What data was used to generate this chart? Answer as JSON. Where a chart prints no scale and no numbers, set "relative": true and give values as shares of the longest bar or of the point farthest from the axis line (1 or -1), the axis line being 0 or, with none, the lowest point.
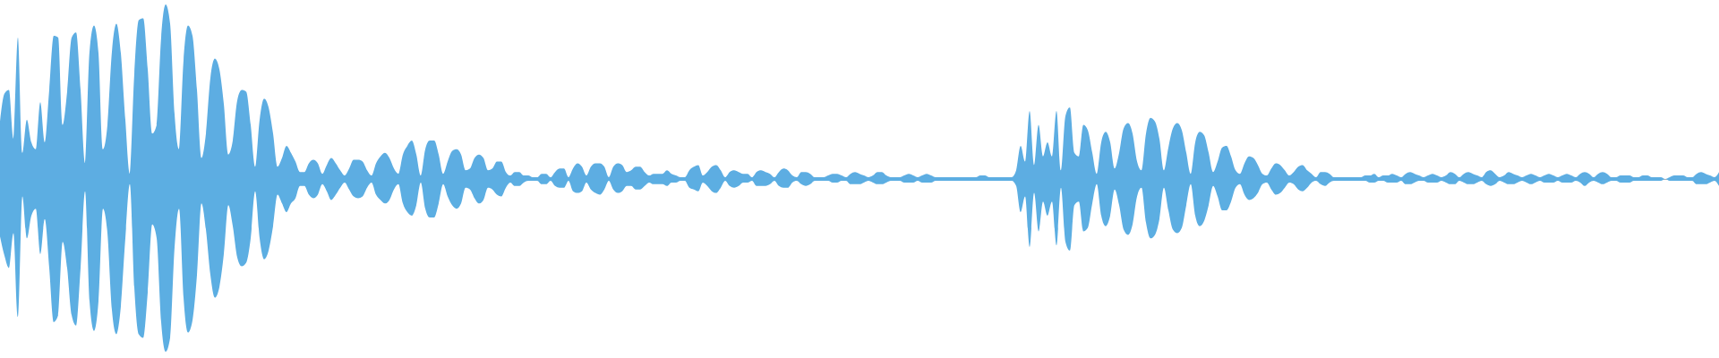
{
  "chart_data": {
    "type": "area",
    "relative": true,
    "tick_labels": false,
    "categories": [
      null,
      null,
      null,
      null,
      null,
      null,
      null,
      null,
      null,
      null,
      null,
      null,
      null,
      null,
      null,
      null,
      null,
      null,
      null,
      null,
      null,
      null,
      null,
      null,
      null,
      null,
      null,
      null,
      null,
      null,
      null,
      null,
      null,
      null,
      null,
      null,
      null,
      null,
      null,
      null,
      null,
      null,
      null,
      null,
      null,
      null,
      null,
      null,
      null,
      null,
      null,
      null,
      null,
      null,
      null,
      null,
      null,
      null,
      null,
      null,
      null,
      null,
      null,
      null,
      null,
      null,
      null,
      null,
      null,
      null,
      null,
      null,
      null,
      null,
      null,
      null,
      null,
      null,
      null,
      null,
      null,
      null,
      null,
      null,
      null,
      null,
      null,
      null,
      null,
      null,
      null,
      null,
      null,
      null,
      null,
      null,
      null,
      null,
      null,
      null,
      null,
      null,
      null,
      null,
      null,
      null,
      null,
      null,
      null,
      null,
      null,
      null,
      null,
      null,
      null,
      null,
      null,
      null,
      null,
      null,
      null,
      null,
      null,
      null,
      null,
      null,
      null,
      null,
      null,
      null,
      null,
      null,
      null,
      null,
      null,
      null,
      null,
      null,
      null,
      null,
      null,
      null,
      null,
      null,
      null,
      null,
      null,
      null,
      null,
      null,
      null,
      null,
      null,
      null,
      null,
      null,
      null,
      null,
      null,
      null,
      null,
      null,
      null,
      null,
      null,
      null,
      null,
      null,
      null,
      null,
      null,
      null,
      null,
      null,
      null,
      null,
      null,
      null,
      null,
      null,
      null,
      null,
      null,
      null,
      null,
      null,
      null,
      null,
      null,
      null,
      null,
      null,
      null,
      null,
      null,
      null,
      null,
      null,
      null,
      null,
      null,
      null,
      null,
      null,
      null,
      null,
      null,
      null,
      null,
      null,
      null,
      null,
      null,
      null,
      null,
      null,
      null,
      null,
      null,
      null,
      null,
      null,
      null,
      null,
      null,
      null,
      null,
      null,
      null,
      null,
      null,
      null,
      null,
      null,
      null,
      null,
      null,
      null,
      null,
      null,
      null,
      null,
      null,
      null,
      null,
      null,
      null,
      null,
      null,
      null,
      null,
      null,
      null,
      null,
      null,
      null,
      null,
      null,
      null,
      null,
      null,
      null,
      null,
      null,
      null,
      null,
      null,
      null,
      null,
      null,
      null,
      null,
      null,
      null,
      null,
      null,
      null,
      null,
      null,
      null,
      null,
      null,
      null,
      null,
      null,
      null,
      null,
      null,
      null,
      null,
      null,
      null,
      null,
      null,
      null,
      null,
      null,
      null,
      null,
      null,
      null,
      null,
      null,
      null,
      null,
      null,
      null,
      null,
      null,
      null,
      null,
      null,
      null,
      null,
      null,
      null,
      null,
      null,
      null,
      null,
      null,
      null,
      null,
      null,
      null,
      null,
      null,
      null,
      null,
      null,
      null,
      null,
      null,
      null,
      null,
      null,
      null,
      null,
      null,
      null,
      null,
      null,
      null,
      null,
      null,
      null,
      null,
      null,
      null,
      null,
      null,
      null,
      null,
      null,
      null,
      null,
      null,
      null,
      null,
      null,
      null,
      null,
      null,
      null,
      null,
      null,
      null,
      null,
      null,
      null,
      null,
      null,
      null,
      null,
      null,
      null,
      null,
      null,
      null,
      null,
      null,
      null,
      null,
      null,
      null
    ],
    "series": [
      {
        "color": "#5dade2",
        "values": [
          0.33,
          0.49,
          0.51,
          0.23,
          0.81,
          0.15,
          0.34,
          0.21,
          0.17,
          0.44,
          0.21,
          0.51,
          0.82,
          0.81,
          0.31,
          0.5,
          0.81,
          0.84,
          0.51,
          0.09,
          0.73,
          0.88,
          0.72,
          0.17,
          0.31,
          0.73,
          0.89,
          0.72,
          0.34,
          0.03,
          0.6,
          0.91,
          0.92,
          0.63,
          0.26,
          0.31,
          0.81,
          1,
          0.89,
          0.37,
          0.17,
          0.68,
          0.88,
          0.82,
          0.51,
          0.12,
          0.26,
          0.58,
          0.69,
          0.63,
          0.43,
          0.14,
          0.22,
          0.45,
          0.51,
          0.5,
          0.31,
          0.07,
          0.34,
          0.46,
          0.41,
          0.26,
          0.07,
          0.12,
          0.19,
          0.15,
          0.1,
          0.04,
          0.04,
          0.09,
          0.11,
          0.09,
          0.03,
          0.08,
          0.12,
          0.09,
          0.05,
          0.02,
          0.06,
          0.11,
          0.11,
          0.1,
          0.05,
          0.02,
          0.09,
          0.13,
          0.15,
          0.12,
          0.06,
          0.03,
          0.14,
          0.19,
          0.22,
          0.14,
          0.02,
          0.17,
          0.22,
          0.22,
          0.14,
          0.03,
          0.1,
          0.16,
          0.17,
          0.14,
          0.05,
          0.06,
          0.12,
          0.14,
          0.12,
          0.05,
          0.06,
          0.1,
          0.1,
          0.04,
          0.02,
          0.04,
          0.04,
          0.02,
          0.02,
          0.01,
          0.01,
          0.03,
          0.03,
          0.01,
          0.04,
          0.06,
          0.06,
          0.01,
          0.06,
          0.09,
          0.07,
          0.02,
          0.07,
          0.09,
          0.09,
          0.07,
          0.01,
          0.07,
          0.09,
          0.08,
          0.04,
          0.05,
          0.07,
          0.07,
          0.04,
          0.02,
          0.03,
          0.03,
          0.03,
          0.05,
          0.03,
          0.02,
          0.01,
          0.01,
          0.05,
          0.07,
          0.08,
          0.02,
          0.04,
          0.07,
          0.08,
          0.05,
          0.01,
          0.04,
          0.05,
          0.04,
          0.03,
          0.03,
          0.01,
          0.04,
          0.05,
          0.04,
          0.03,
          0.01,
          0.04,
          0.06,
          0.05,
          0.02,
          0.01,
          0.04,
          0.04,
          0.03,
          0.01,
          0.01,
          0.01,
          0.02,
          0.03,
          0.03,
          0.02,
          0.01,
          0.03,
          0.04,
          0.03,
          0.02,
          0.01,
          0.02,
          0.04,
          0.04,
          0.02,
          0.01,
          0.01,
          0.01,
          0.02,
          0.03,
          0.02,
          0.01,
          0.02,
          0.03,
          0.02,
          0.01,
          0.01,
          0.01,
          0.01,
          0.01,
          0.01,
          0.01,
          0.01,
          0.01,
          0.01,
          0.02,
          0.02,
          0.01,
          0.01,
          0.01,
          0.01,
          0.01,
          0.01,
          0.05,
          0.19,
          0.1,
          0.39,
          0.08,
          0.31,
          0.13,
          0.21,
          0.13,
          0.39,
          0.05,
          0.36,
          0.41,
          0.15,
          0.13,
          0.31,
          0.28,
          0.15,
          0.03,
          0.21,
          0.27,
          0.21,
          0.06,
          0.15,
          0.29,
          0.32,
          0.26,
          0.1,
          0.05,
          0.26,
          0.35,
          0.33,
          0.23,
          0.05,
          0.18,
          0.29,
          0.32,
          0.28,
          0.15,
          0.03,
          0.21,
          0.27,
          0.25,
          0.15,
          0.04,
          0.1,
          0.18,
          0.19,
          0.13,
          0.05,
          0.03,
          0.09,
          0.13,
          0.12,
          0.08,
          0.03,
          0.02,
          0.06,
          0.09,
          0.08,
          0.05,
          0.02,
          0.04,
          0.07,
          0.08,
          0.05,
          0.03,
          0.01,
          0.04,
          0.04,
          0.03,
          0.01,
          0.01,
          0.01,
          0.01,
          0.01,
          0.01,
          0.01,
          0.02,
          0.02,
          0.03,
          0.01,
          0.02,
          0.02,
          0.03,
          0.02,
          0.01,
          0.03,
          0.04,
          0.03,
          0.02,
          0.01,
          0.02,
          0.03,
          0.02,
          0.01,
          0.02,
          0.04,
          0.03,
          0.01,
          0.03,
          0.04,
          0.03,
          0.02,
          0.01,
          0.04,
          0.05,
          0.03,
          0.01,
          0.02,
          0.04,
          0.03,
          0.02,
          0.01,
          0.02,
          0.03,
          0.02,
          0.01,
          0.02,
          0.03,
          0.02,
          0.01,
          0.02,
          0.03,
          0.02,
          0.01,
          0.03,
          0.04,
          0.03,
          0.01,
          0.03,
          0.04,
          0.03,
          0.01,
          0.01,
          0.02,
          0.02,
          0.02,
          0.01,
          0.01,
          0.02,
          0.02,
          0.01,
          0.01,
          0.01,
          0,
          0.01,
          0.02,
          0.02,
          0.02,
          0.01,
          0.01,
          0.03,
          0.04,
          0.03,
          0.02,
          0.01,
          0.04
        ]
      },
      {
        "color": "#5caee2",
        "values": [
          -0.33,
          -0.44,
          -0.51,
          -0.31,
          -0.79,
          -0.1,
          -0.34,
          -0.21,
          -0.17,
          -0.43,
          -0.23,
          -0.51,
          -0.82,
          -0.78,
          -0.36,
          -0.51,
          -0.78,
          -0.84,
          -0.51,
          -0.07,
          -0.7,
          -0.87,
          -0.7,
          -0.17,
          -0.31,
          -0.75,
          -0.89,
          -0.73,
          -0.34,
          -0.03,
          -0.62,
          -0.89,
          -0.91,
          -0.65,
          -0.26,
          -0.34,
          -0.82,
          -0.99,
          -0.91,
          -0.39,
          -0.17,
          -0.68,
          -0.88,
          -0.81,
          -0.55,
          -0.14,
          -0.29,
          -0.55,
          -0.68,
          -0.62,
          -0.43,
          -0.15,
          -0.27,
          -0.45,
          -0.5,
          -0.48,
          -0.34,
          -0.07,
          -0.34,
          -0.46,
          -0.41,
          -0.27,
          -0.09,
          -0.14,
          -0.19,
          -0.14,
          -0.11,
          -0.04,
          -0.04,
          -0.09,
          -0.11,
          -0.09,
          -0.03,
          -0.07,
          -0.12,
          -0.09,
          -0.05,
          -0.02,
          -0.06,
          -0.1,
          -0.11,
          -0.1,
          -0.05,
          -0.02,
          -0.09,
          -0.12,
          -0.14,
          -0.12,
          -0.06,
          -0.03,
          -0.14,
          -0.19,
          -0.21,
          -0.15,
          -0.02,
          -0.17,
          -0.22,
          -0.22,
          -0.14,
          -0.03,
          -0.1,
          -0.15,
          -0.17,
          -0.14,
          -0.05,
          -0.06,
          -0.11,
          -0.14,
          -0.12,
          -0.05,
          -0.06,
          -0.09,
          -0.1,
          -0.05,
          -0.02,
          -0.04,
          -0.04,
          -0.02,
          -0.01,
          -0.01,
          -0.01,
          -0.03,
          -0.03,
          -0.01,
          -0.04,
          -0.05,
          -0.05,
          -0.01,
          -0.07,
          -0.08,
          -0.07,
          -0.02,
          -0.06,
          -0.08,
          -0.09,
          -0.06,
          -0.01,
          -0.06,
          -0.08,
          -0.07,
          -0.04,
          -0.04,
          -0.06,
          -0.06,
          -0.04,
          -0.02,
          -0.03,
          -0.03,
          -0.03,
          -0.04,
          -0.02,
          -0.02,
          -0.01,
          -0.01,
          -0.05,
          -0.06,
          -0.07,
          -0.02,
          -0.04,
          -0.07,
          -0.08,
          -0.05,
          -0.01,
          -0.04,
          -0.05,
          -0.04,
          -0.02,
          -0.02,
          -0.01,
          -0.04,
          -0.04,
          -0.04,
          -0.03,
          -0.01,
          -0.04,
          -0.05,
          -0.05,
          -0.02,
          -0.01,
          -0.03,
          -0.04,
          -0.03,
          -0.01,
          -0.01,
          -0.01,
          -0.01,
          -0.02,
          -0.02,
          -0.01,
          -0.01,
          -0.03,
          -0.03,
          -0.03,
          -0.02,
          -0.01,
          -0.02,
          -0.03,
          -0.03,
          -0.02,
          -0.01,
          -0.01,
          -0.01,
          -0.02,
          -0.02,
          -0.02,
          -0.01,
          -0.02,
          -0.02,
          -0.02,
          -0.01,
          -0.01,
          -0.01,
          -0.01,
          -0.01,
          -0.01,
          -0.01,
          -0.01,
          -0.01,
          -0.01,
          -0.01,
          -0.01,
          -0.01,
          -0.01,
          -0.01,
          -0.01,
          -0.01,
          -0.01,
          -0.04,
          -0.19,
          -0.1,
          -0.39,
          -0.08,
          -0.3,
          -0.13,
          -0.21,
          -0.13,
          -0.38,
          -0.05,
          -0.36,
          -0.41,
          -0.15,
          -0.13,
          -0.3,
          -0.28,
          -0.14,
          -0.03,
          -0.21,
          -0.27,
          -0.21,
          -0.06,
          -0.15,
          -0.29,
          -0.32,
          -0.26,
          -0.1,
          -0.05,
          -0.25,
          -0.34,
          -0.32,
          -0.23,
          -0.05,
          -0.18,
          -0.29,
          -0.31,
          -0.28,
          -0.15,
          -0.03,
          -0.21,
          -0.27,
          -0.24,
          -0.15,
          -0.04,
          -0.1,
          -0.18,
          -0.18,
          -0.13,
          -0.05,
          -0.03,
          -0.09,
          -0.12,
          -0.11,
          -0.08,
          -0.03,
          -0.02,
          -0.06,
          -0.09,
          -0.08,
          -0.05,
          -0.02,
          -0.03,
          -0.06,
          -0.07,
          -0.05,
          -0.02,
          -0.01,
          -0.03,
          -0.04,
          -0.02,
          -0.01,
          -0.01,
          -0.01,
          -0.01,
          -0.01,
          -0.01,
          -0.01,
          -0.01,
          -0.02,
          -0.02,
          -0.01,
          -0.01,
          -0.02,
          -0.02,
          -0.02,
          -0.01,
          -0.03,
          -0.03,
          -0.02,
          -0.01,
          -0.01,
          -0.02,
          -0.02,
          -0.02,
          -0.01,
          -0.02,
          -0.03,
          -0.03,
          -0.01,
          -0.02,
          -0.03,
          -0.03,
          -0.02,
          -0.01,
          -0.03,
          -0.04,
          -0.03,
          -0.01,
          -0.02,
          -0.03,
          -0.03,
          -0.02,
          -0.01,
          -0.02,
          -0.03,
          -0.02,
          -0.01,
          -0.02,
          -0.02,
          -0.02,
          -0.01,
          -0.02,
          -0.02,
          -0.02,
          -0.01,
          -0.02,
          -0.04,
          -0.02,
          -0.01,
          -0.02,
          -0.03,
          -0.02,
          -0.01,
          -0.01,
          -0.02,
          -0.02,
          -0.02,
          -0.01,
          -0.01,
          -0.01,
          -0.01,
          -0.01,
          -0.01,
          -0.01,
          0,
          -0.01,
          -0.01,
          -0.01,
          -0.01,
          -0.01,
          -0.01,
          -0.03,
          -0.03,
          -0.03,
          -0.02,
          -0.01,
          -0.04
        ]
      }
    ]
  }
}
